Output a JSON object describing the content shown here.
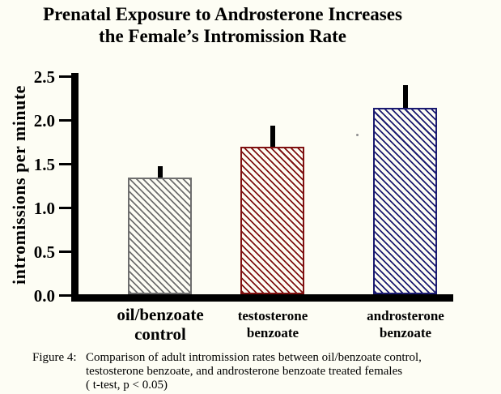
{
  "title": {
    "line1": "Prenatal Exposure to Androsterone Increases",
    "line2": "the Female’s Intromission Rate"
  },
  "caption": {
    "label": "Figure 4:",
    "line1": "Comparison of adult intromission rates between oil/benzoate control,",
    "line2": "testosterone benzoate, and androsterone benzoate treated females",
    "line3": "( t-test, p < 0.05)"
  },
  "chart_data": {
    "type": "bar",
    "title": "Prenatal Exposure to Androsterone Increases the Female’s Intromission Rate",
    "ylabel": "intromissions per minute",
    "xlabel": "",
    "ylim": [
      0,
      2.5
    ],
    "yticks": [
      0,
      0.5,
      1,
      1.5,
      2,
      2.5
    ],
    "ytick_labels": [
      "0.0",
      "0.5",
      "1.0",
      "1.5",
      "2.0",
      "2.5"
    ],
    "grid": false,
    "legend": false,
    "categories": [
      "oil/benzoate control",
      "testosterone benzoate",
      "androsterone benzoate"
    ],
    "categories_lines": [
      [
        "oil/benzoate",
        "control"
      ],
      [
        "testosterone",
        "benzoate"
      ],
      [
        "androsterone",
        "benzoate"
      ]
    ],
    "values": [
      1.35,
      1.7,
      2.15
    ],
    "error_up": [
      0.13,
      0.24,
      0.26
    ],
    "bar_colors": [
      "#6e6e6e",
      "#7f1111",
      "#1b1b70"
    ],
    "bar_hatch": "diagonal-down",
    "error_color": "#000000",
    "axis_color": "#000000"
  }
}
